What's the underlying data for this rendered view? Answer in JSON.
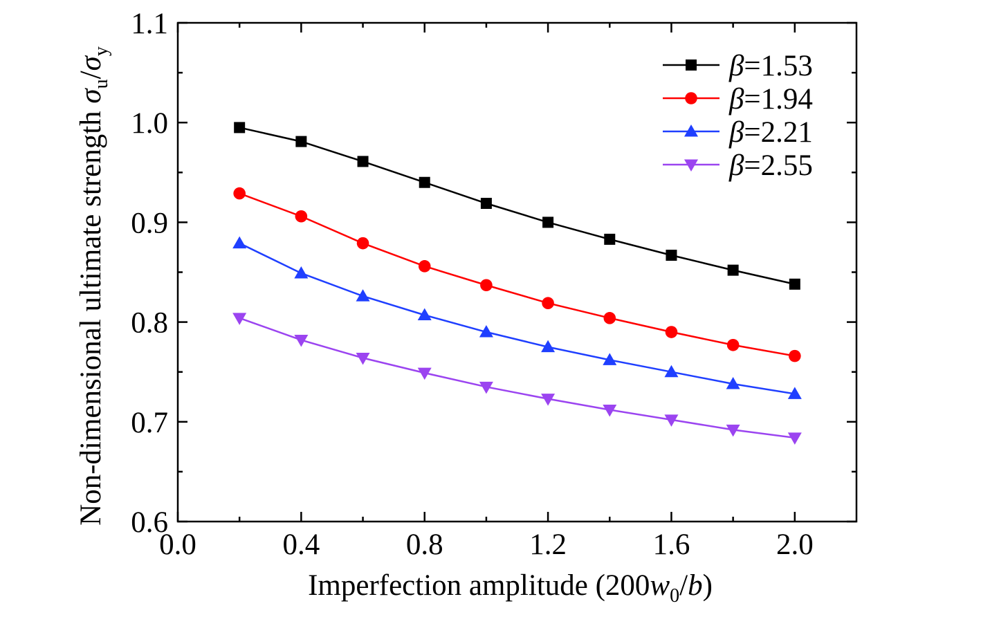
{
  "chart_data": {
    "type": "line",
    "xlabel": "Imperfection amplitude (200w0/b)",
    "xlabel_parts": {
      "pre": "Imperfection amplitude (200",
      "var": "w",
      "sub": "0",
      "slash": "/",
      "var2": "b",
      "post": ")"
    },
    "ylabel": "Non-dimensional ultimate strength σu/σy",
    "ylabel_parts": {
      "pre": "Non-dimensional ultimate strength ",
      "sig1": "σ",
      "sub1": "u",
      "slash": "/",
      "sig2": "σ",
      "sub2": "y"
    },
    "xlim": [
      0.0,
      2.2
    ],
    "ylim": [
      0.6,
      1.1
    ],
    "xticks": [
      "0.0",
      "0.4",
      "0.8",
      "1.2",
      "1.6",
      "2.0"
    ],
    "yticks": [
      "0.6",
      "0.7",
      "0.8",
      "0.9",
      "1.0",
      "1.1"
    ],
    "x": [
      0.2,
      0.4,
      0.6,
      0.8,
      1.0,
      1.2,
      1.4,
      1.6,
      1.8,
      2.0
    ],
    "legend_position": "top-right",
    "grid": false,
    "series": [
      {
        "name": "β=1.53",
        "color": "#000000",
        "marker": "square",
        "values": [
          0.995,
          0.981,
          0.961,
          0.94,
          0.919,
          0.9,
          0.883,
          0.867,
          0.852,
          0.838
        ]
      },
      {
        "name": "β=1.94",
        "color": "#ff0000",
        "marker": "circle",
        "values": [
          0.929,
          0.906,
          0.879,
          0.856,
          0.837,
          0.819,
          0.804,
          0.79,
          0.777,
          0.766
        ]
      },
      {
        "name": "β=2.21",
        "color": "#1f3fff",
        "marker": "triangle-up",
        "values": [
          0.879,
          0.849,
          0.826,
          0.807,
          0.79,
          0.775,
          0.762,
          0.75,
          0.738,
          0.728
        ]
      },
      {
        "name": "β=2.55",
        "color": "#9b44f0",
        "marker": "triangle-down",
        "values": [
          0.804,
          0.782,
          0.764,
          0.749,
          0.735,
          0.723,
          0.712,
          0.702,
          0.692,
          0.684
        ]
      }
    ]
  }
}
